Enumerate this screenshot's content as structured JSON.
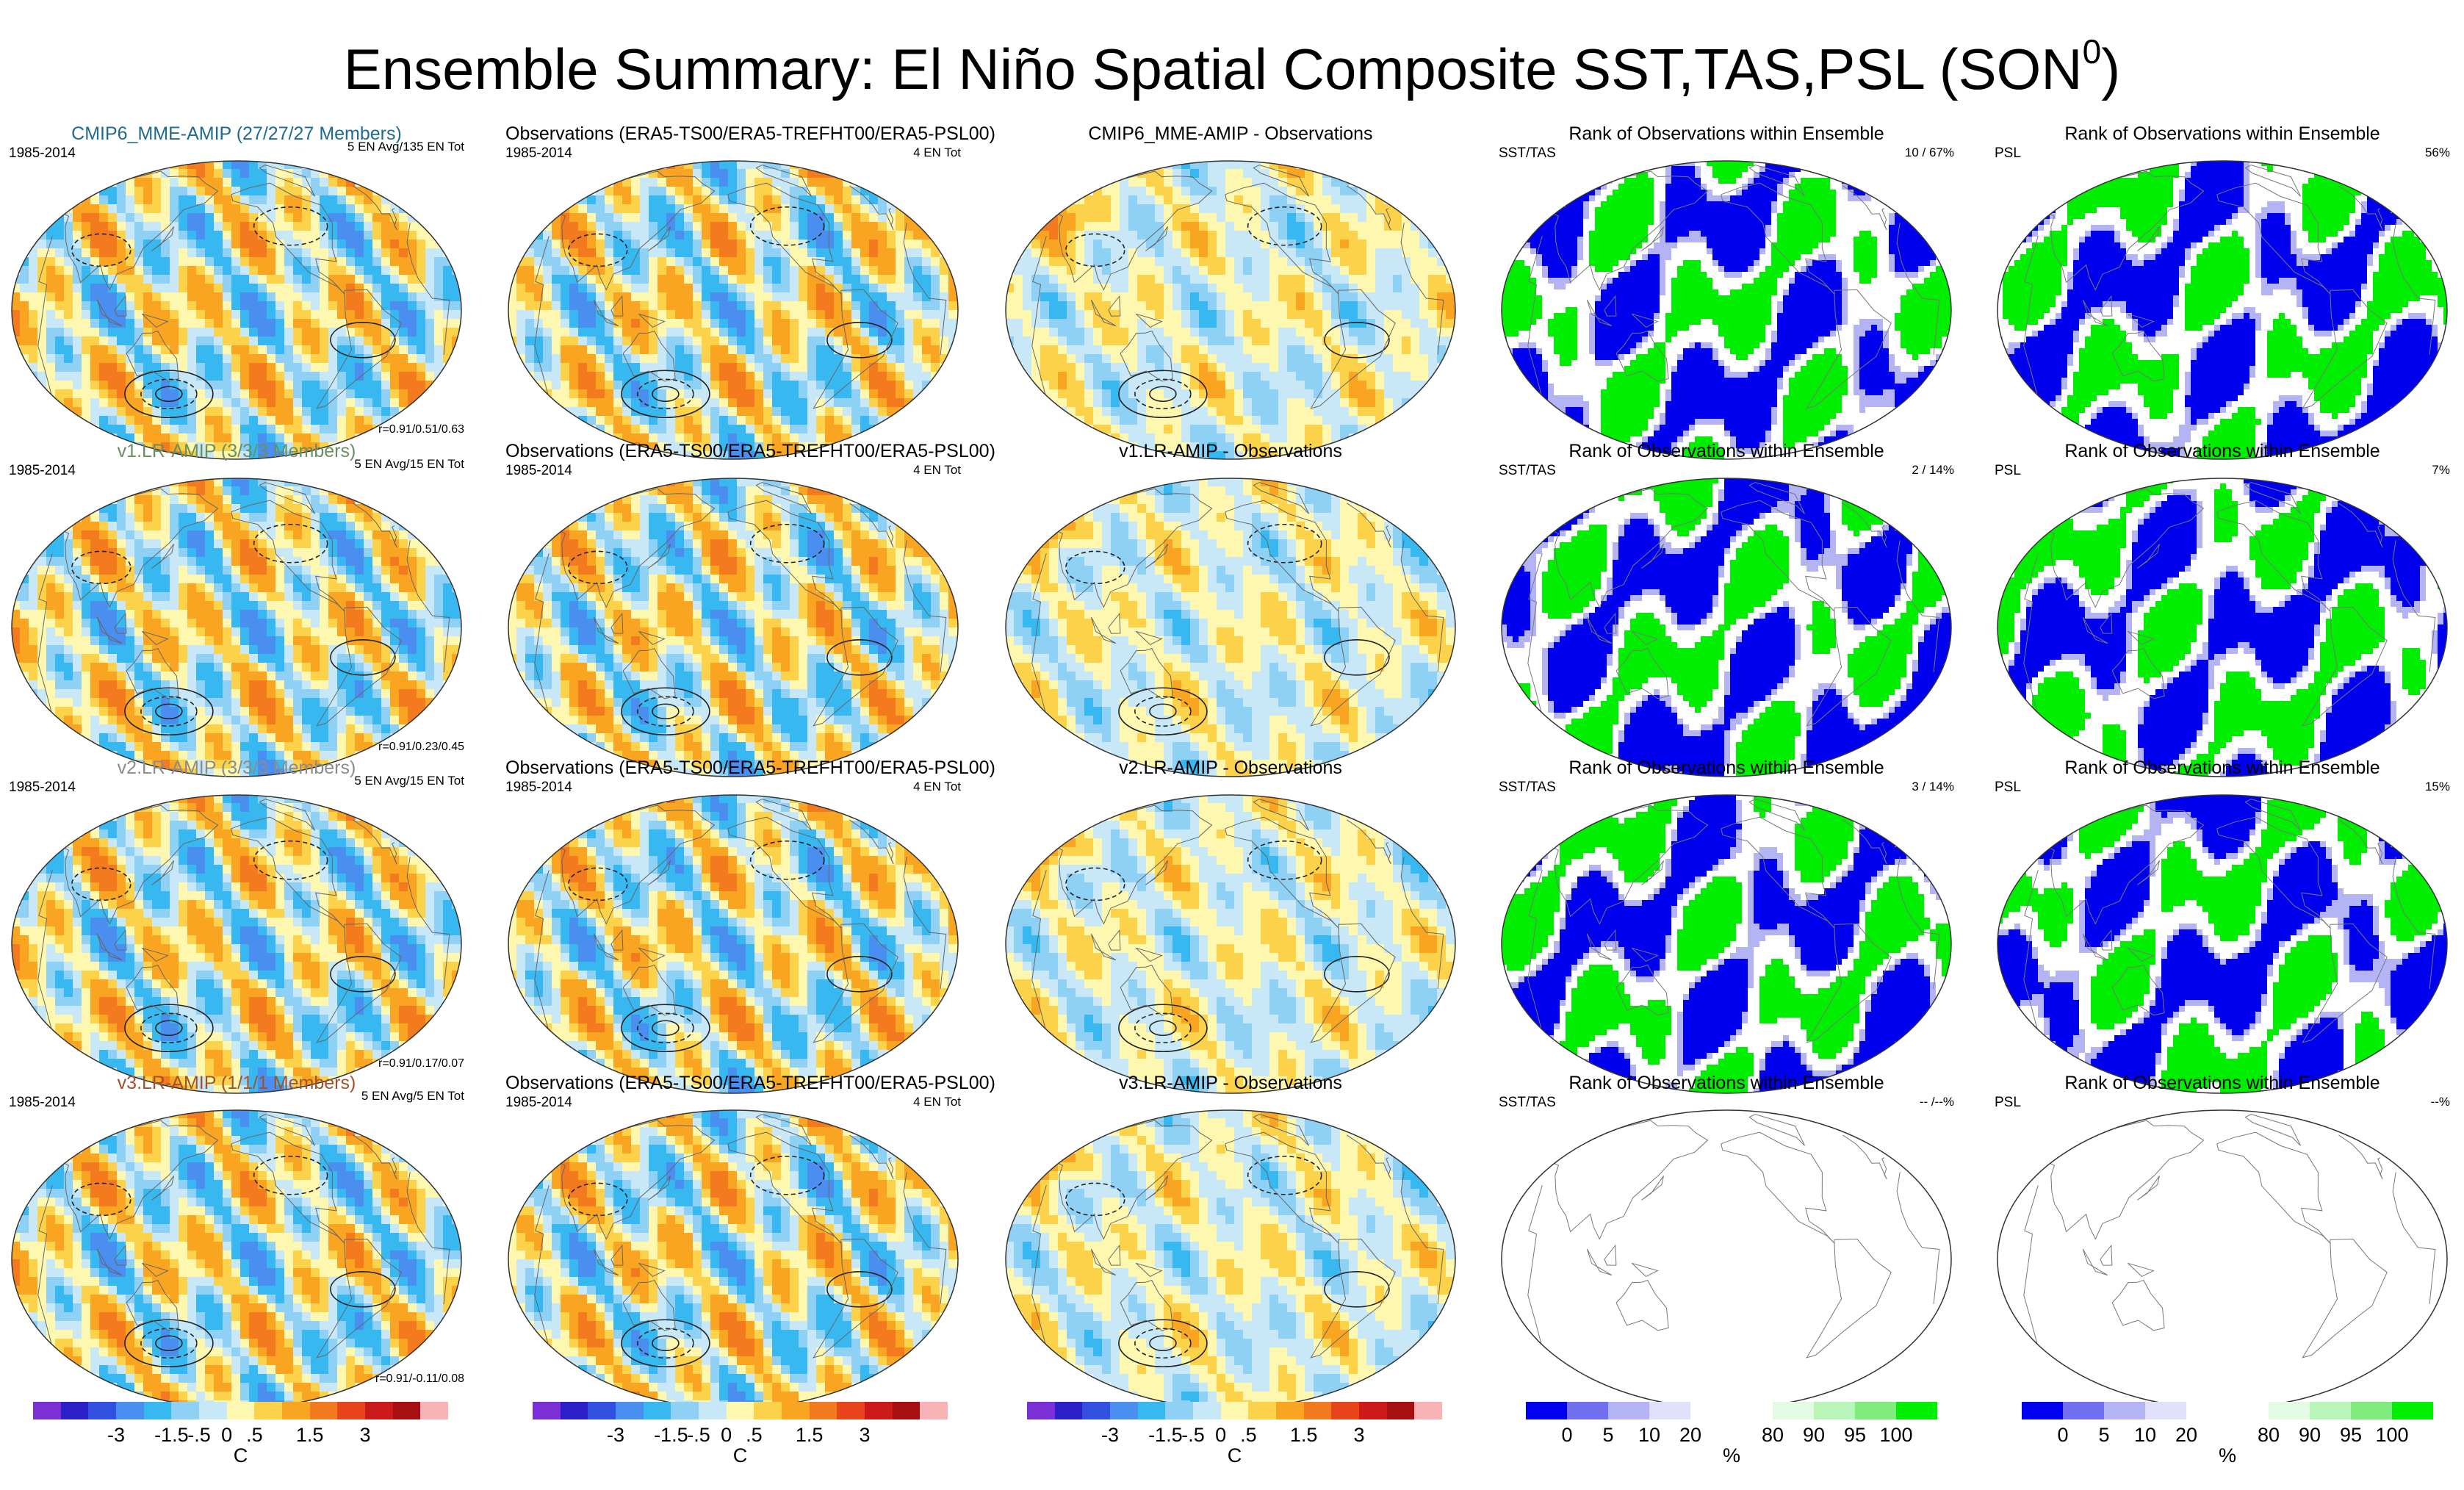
{
  "title": "Ensemble Summary: El Niño Spatial Composite SST,TAS,PSL (SON",
  "title_sup": "0",
  "title_close": ")",
  "rows": [
    {
      "model": {
        "title": "CMIP6_MME-AMIP (27/27/27 Members)",
        "color": "#1f6b8c",
        "left": "1985-2014",
        "right": "5 EN Avg/135 EN Tot",
        "stat": "r=0.91/0.51/0.63"
      },
      "obs": {
        "title": "Observations (ERA5-TS00/ERA5-TREFHT00/ERA5-PSL00)",
        "left": "1985-2014",
        "right": "4 EN Tot"
      },
      "diff": {
        "title": "CMIP6_MME-AMIP - Observations"
      },
      "rank1": {
        "title": "Rank of Observations within Ensemble",
        "left": "SST/TAS",
        "right": "10 /  67%"
      },
      "rank2": {
        "title": "Rank of Observations within Ensemble",
        "left": "PSL",
        "right": "56%"
      }
    },
    {
      "model": {
        "title": "v1.LR-AMIP (3/3/3 Members)",
        "color": "#6a8f5f",
        "left": "1985-2014",
        "right": "5 EN Avg/15 EN Tot",
        "stat": "r=0.91/0.23/0.45"
      },
      "obs": {
        "title": "Observations (ERA5-TS00/ERA5-TREFHT00/ERA5-PSL00)",
        "left": "1985-2014",
        "right": "4 EN Tot"
      },
      "diff": {
        "title": "v1.LR-AMIP - Observations"
      },
      "rank1": {
        "title": "Rank of Observations within Ensemble",
        "left": "SST/TAS",
        "right": "2 /  14%"
      },
      "rank2": {
        "title": "Rank of Observations within Ensemble",
        "left": "PSL",
        "right": "7%"
      }
    },
    {
      "model": {
        "title": "v2.LR-AMIP (3/3/3 Members)",
        "color": "#8c8c8c",
        "left": "1985-2014",
        "right": "5 EN Avg/15 EN Tot",
        "stat": "r=0.91/0.17/0.07"
      },
      "obs": {
        "title": "Observations (ERA5-TS00/ERA5-TREFHT00/ERA5-PSL00)",
        "left": "1985-2014",
        "right": "4 EN Tot"
      },
      "diff": {
        "title": "v2.LR-AMIP - Observations"
      },
      "rank1": {
        "title": "Rank of Observations within Ensemble",
        "left": "SST/TAS",
        "right": "3 /  14%"
      },
      "rank2": {
        "title": "Rank of Observations within Ensemble",
        "left": "PSL",
        "right": "15%"
      }
    },
    {
      "model": {
        "title": "v3.LR-AMIP (1/1/1 Members)",
        "color": "#a0522d",
        "left": "1985-2014",
        "right": "5 EN Avg/5 EN Tot",
        "stat": "r=0.91/-0.11/0.08"
      },
      "obs": {
        "title": "Observations (ERA5-TS00/ERA5-TREFHT00/ERA5-PSL00)",
        "left": "1985-2014",
        "right": "4 EN Tot"
      },
      "diff": {
        "title": "v3.LR-AMIP - Observations"
      },
      "rank1": {
        "title": "Rank of Observations within Ensemble",
        "left": "SST/TAS",
        "right": "-- /--%"
      },
      "rank2": {
        "title": "Rank of Observations within Ensemble",
        "left": "PSL",
        "right": "--%"
      }
    }
  ],
  "colorbars": {
    "temp": {
      "colors": [
        "#7b2fd6",
        "#2a1fc8",
        "#3250e0",
        "#4a8ef0",
        "#38b8f0",
        "#8fd0f5",
        "#c8e8f8",
        "#fdf7b0",
        "#fcd24a",
        "#f9a522",
        "#f47a1f",
        "#e8441c",
        "#cc1a1a",
        "#a80f12",
        "#f7b3b5"
      ],
      "ticks": [
        "-3",
        "-1.5",
        "-.5",
        "0",
        ".5",
        "1.5",
        "3"
      ],
      "unit": "C"
    },
    "rank": {
      "colors": [
        "#0000ee",
        "#7070f0",
        "#b4b4f4",
        "#e0e0fb",
        "#ffffff",
        "#ffffff",
        "#e2fbe2",
        "#b9f5b9",
        "#7eed7e",
        "#00ee00"
      ],
      "ticks": [
        "0",
        "5",
        "10",
        "20",
        "80",
        "90",
        "95",
        "100"
      ],
      "unit": "%"
    }
  }
}
